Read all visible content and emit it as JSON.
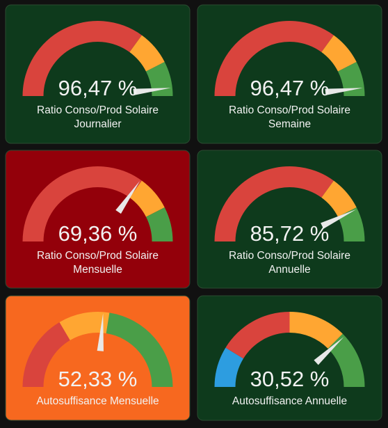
{
  "cards": [
    {
      "value": 96.47,
      "value_label": "96,47 %",
      "name_lines": [
        "Ratio Conso/Prod Solaire",
        "Journalier"
      ],
      "min": 0,
      "max": 100,
      "background": "#0e3a1c",
      "segments": [
        {
          "from": 0,
          "color": "#d9443d"
        },
        {
          "from": 70,
          "color": "#ffa632"
        },
        {
          "from": 85,
          "color": "#4a9e48"
        }
      ]
    },
    {
      "value": 96.47,
      "value_label": "96,47 %",
      "name_lines": [
        "Ratio Conso/Prod Solaire",
        "Semaine"
      ],
      "min": 0,
      "max": 100,
      "background": "#0e3a1c",
      "segments": [
        {
          "from": 0,
          "color": "#d9443d"
        },
        {
          "from": 70,
          "color": "#ffa632"
        },
        {
          "from": 85,
          "color": "#4a9e48"
        }
      ]
    },
    {
      "value": 69.36,
      "value_label": "69,36 %",
      "name_lines": [
        "Ratio Conso/Prod Solaire",
        "Mensuelle"
      ],
      "min": 0,
      "max": 100,
      "background": "#93000a",
      "segments": [
        {
          "from": 0,
          "color": "#d9443d"
        },
        {
          "from": 70,
          "color": "#ffa632"
        },
        {
          "from": 85,
          "color": "#4a9e48"
        }
      ]
    },
    {
      "value": 85.72,
      "value_label": "85,72 %",
      "name_lines": [
        "Ratio Conso/Prod Solaire",
        "Annuelle"
      ],
      "min": 0,
      "max": 100,
      "background": "#0e3a1c",
      "segments": [
        {
          "from": 0,
          "color": "#d9443d"
        },
        {
          "from": 70,
          "color": "#ffa632"
        },
        {
          "from": 85,
          "color": "#4a9e48"
        }
      ]
    },
    {
      "value": 52.33,
      "value_label": "52,33 %",
      "name_lines": [
        "Autosuffisance Mensuelle"
      ],
      "min": 0,
      "max": 100,
      "background": "#f7681f",
      "segments": [
        {
          "from": 0,
          "color": "#d9443d"
        },
        {
          "from": 33,
          "color": "#ffa632"
        },
        {
          "from": 55,
          "color": "#4a9e48"
        }
      ]
    },
    {
      "value": 30.52,
      "value_label": "30,52 %",
      "name_lines": [
        "Autosuffisance Annuelle"
      ],
      "min": 0,
      "max": 40,
      "background": "#0e3a1c",
      "segments": [
        {
          "from": 0,
          "color": "#2d9de0"
        },
        {
          "from": 7,
          "color": "#d9443d"
        },
        {
          "from": 20,
          "color": "#ffa632"
        },
        {
          "from": 30,
          "color": "#4a9e48"
        }
      ]
    }
  ]
}
